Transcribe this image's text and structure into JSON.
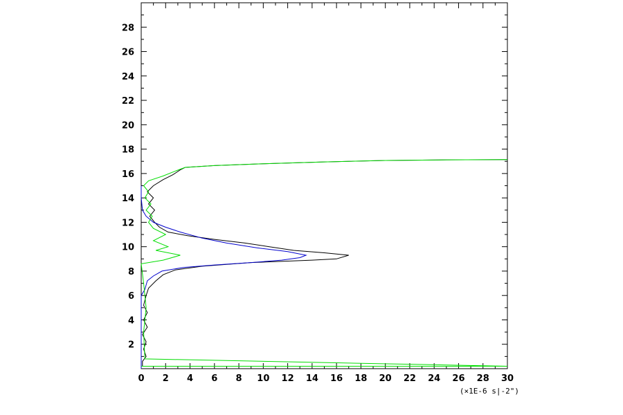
{
  "chart_data": {
    "type": "line",
    "title": "",
    "xlabel": "",
    "ylabel": "",
    "x_unit_label": "(×1E-6 s|-2\")",
    "xlim": [
      0,
      30
    ],
    "ylim": [
      0,
      30
    ],
    "x_ticks": [
      0,
      2,
      4,
      6,
      8,
      10,
      12,
      14,
      16,
      18,
      20,
      22,
      24,
      26,
      28,
      30
    ],
    "y_ticks": [
      2,
      4,
      6,
      8,
      10,
      12,
      14,
      16,
      18,
      20,
      22,
      24,
      26,
      28
    ],
    "grid": false,
    "legend": "none",
    "series": [
      {
        "color": "#000000",
        "points": [
          [
            0.1,
            0.2
          ],
          [
            0.1,
            0.6
          ],
          [
            0.4,
            1.0
          ],
          [
            0.2,
            1.6
          ],
          [
            0.4,
            2.2
          ],
          [
            0.1,
            2.8
          ],
          [
            0.5,
            3.4
          ],
          [
            0.2,
            4.0
          ],
          [
            0.5,
            4.6
          ],
          [
            0.2,
            5.2
          ],
          [
            0.4,
            6.0
          ],
          [
            0.6,
            6.6
          ],
          [
            1.2,
            7.2
          ],
          [
            1.8,
            7.7
          ],
          [
            2.8,
            8.1
          ],
          [
            5.0,
            8.4
          ],
          [
            9.0,
            8.7
          ],
          [
            14.0,
            8.9
          ],
          [
            16.0,
            9.0
          ],
          [
            17.0,
            9.3
          ],
          [
            15.0,
            9.5
          ],
          [
            12.5,
            9.7
          ],
          [
            10.5,
            10.0
          ],
          [
            8.5,
            10.3
          ],
          [
            6.0,
            10.6
          ],
          [
            3.8,
            10.9
          ],
          [
            2.2,
            11.2
          ],
          [
            1.5,
            11.6
          ],
          [
            1.1,
            12.0
          ],
          [
            0.7,
            12.5
          ],
          [
            1.1,
            13.0
          ],
          [
            0.6,
            13.5
          ],
          [
            1.0,
            14.0
          ],
          [
            0.5,
            14.5
          ],
          [
            1.0,
            15.0
          ],
          [
            1.8,
            15.5
          ],
          [
            2.6,
            15.9
          ],
          [
            3.2,
            16.3
          ],
          [
            3.6,
            16.5
          ],
          [
            6.0,
            16.65
          ],
          [
            10.0,
            16.8
          ],
          [
            15.0,
            16.95
          ],
          [
            20.0,
            17.07
          ],
          [
            25.0,
            17.12
          ],
          [
            30.0,
            17.14
          ]
        ]
      },
      {
        "color": "#0000cc",
        "points": [
          [
            0.0,
            0.0
          ],
          [
            0.0,
            6.0
          ],
          [
            0.3,
            6.5
          ],
          [
            0.5,
            7.2
          ],
          [
            1.0,
            7.6
          ],
          [
            1.7,
            8.0
          ],
          [
            3.5,
            8.3
          ],
          [
            6.0,
            8.5
          ],
          [
            9.0,
            8.7
          ],
          [
            11.5,
            8.9
          ],
          [
            13.0,
            9.1
          ],
          [
            13.5,
            9.3
          ],
          [
            12.0,
            9.6
          ],
          [
            9.5,
            9.9
          ],
          [
            7.0,
            10.3
          ],
          [
            5.0,
            10.7
          ],
          [
            3.2,
            11.2
          ],
          [
            2.0,
            11.6
          ],
          [
            1.0,
            12.0
          ],
          [
            0.4,
            12.5
          ],
          [
            0.1,
            13.0
          ],
          [
            0.0,
            14.0
          ],
          [
            0.0,
            15.0
          ]
        ]
      },
      {
        "color": "#00dd00",
        "points": [
          [
            0.0,
            0.2
          ],
          [
            30.0,
            0.2
          ],
          [
            0.3,
            0.8
          ],
          [
            0.2,
            3.0
          ],
          [
            0.4,
            5.0
          ],
          [
            0.2,
            7.0
          ],
          [
            0.0,
            8.6
          ],
          [
            1.8,
            8.9
          ],
          [
            3.2,
            9.3
          ],
          [
            1.2,
            9.7
          ],
          [
            2.2,
            10.0
          ],
          [
            1.0,
            10.5
          ],
          [
            2.0,
            11.0
          ],
          [
            1.0,
            11.5
          ],
          [
            0.6,
            12.0
          ],
          [
            0.9,
            12.5
          ],
          [
            0.4,
            13.0
          ],
          [
            0.8,
            13.5
          ],
          [
            0.3,
            14.0
          ],
          [
            0.6,
            14.5
          ],
          [
            0.2,
            15.0
          ],
          [
            0.6,
            15.4
          ],
          [
            1.8,
            15.8
          ],
          [
            2.8,
            16.2
          ],
          [
            3.6,
            16.5
          ],
          [
            6.0,
            16.65
          ],
          [
            10.0,
            16.8
          ],
          [
            15.0,
            16.95
          ],
          [
            20.0,
            17.07
          ],
          [
            25.0,
            17.12
          ],
          [
            30.0,
            17.14
          ]
        ]
      }
    ]
  }
}
